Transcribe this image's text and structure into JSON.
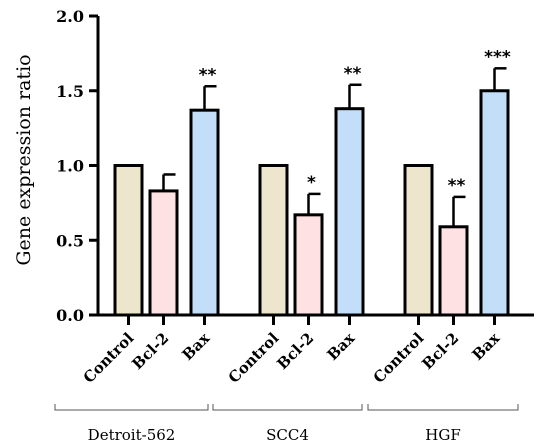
{
  "chart_data": {
    "type": "bar",
    "ylabel": "Gene expression ratio",
    "ylim": [
      0,
      2.0
    ],
    "yticks": [
      "0.0",
      "0.5",
      "1.0",
      "1.5",
      "2.0"
    ],
    "categories": [
      "Control",
      "Bcl-2",
      "Bax"
    ],
    "groups": [
      {
        "name": "Detroit-562",
        "bars": [
          {
            "category": "Control",
            "value": 1.0,
            "error": 0,
            "significance": ""
          },
          {
            "category": "Bcl-2",
            "value": 0.83,
            "error": 0.11,
            "significance": ""
          },
          {
            "category": "Bax",
            "value": 1.37,
            "error": 0.16,
            "significance": "**"
          }
        ]
      },
      {
        "name": "SCC4",
        "bars": [
          {
            "category": "Control",
            "value": 1.0,
            "error": 0,
            "significance": ""
          },
          {
            "category": "Bcl-2",
            "value": 0.67,
            "error": 0.14,
            "significance": "*"
          },
          {
            "category": "Bax",
            "value": 1.38,
            "error": 0.16,
            "significance": "**"
          }
        ]
      },
      {
        "name": "HGF",
        "bars": [
          {
            "category": "Control",
            "value": 1.0,
            "error": 0,
            "significance": ""
          },
          {
            "category": "Bcl-2",
            "value": 0.59,
            "error": 0.2,
            "significance": "**"
          },
          {
            "category": "Bax",
            "value": 1.5,
            "error": 0.15,
            "significance": "***"
          }
        ]
      }
    ],
    "colors": {
      "Control": "#ede6cc",
      "Bcl-2": "#fde1e3",
      "Bax": "#c3def8",
      "outline": "#000000"
    }
  }
}
